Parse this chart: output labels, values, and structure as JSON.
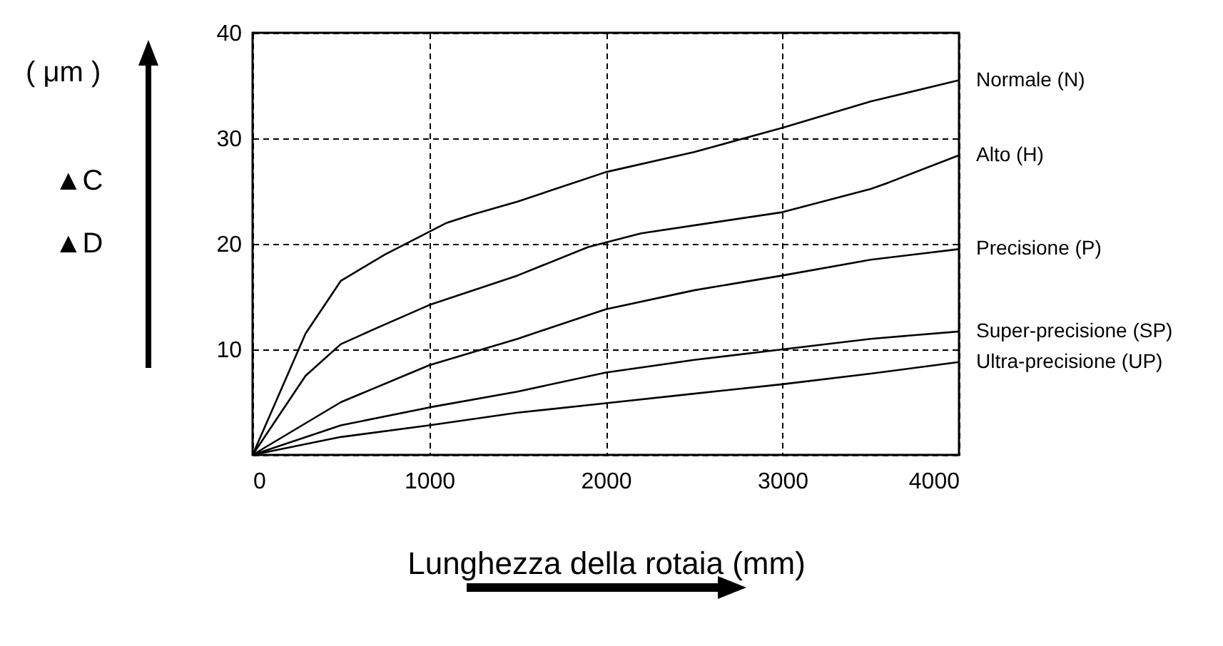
{
  "chart_data": {
    "type": "line",
    "xlabel": "Lunghezza della rotaia (mm)",
    "ylabel": "( μm )",
    "annotations": [
      "▲C",
      "▲D"
    ],
    "xlim": [
      0,
      4000
    ],
    "xticks": [
      0,
      1000,
      2000,
      3000,
      4000
    ],
    "ylim": [
      0,
      40
    ],
    "yticks": [
      {
        "value": 0,
        "label": null
      },
      10,
      20,
      30,
      40
    ],
    "grid": true,
    "line_style": "solid",
    "legend": false,
    "series": [
      {
        "name": "Normale (N)",
        "color": "#000000",
        "x": [
          0,
          300,
          500,
          750,
          1100,
          1250,
          1500,
          2000,
          2500,
          3000,
          3500,
          4000
        ],
        "values": [
          0,
          11.5,
          16.5,
          19,
          22,
          22.8,
          24,
          26.8,
          28.7,
          31,
          33.5,
          35.5
        ]
      },
      {
        "name": "Alto (H)",
        "color": "#000000",
        "x": [
          0,
          300,
          400,
          500,
          700,
          1000,
          1500,
          1900,
          2200,
          2600,
          3000,
          3500,
          3600,
          4000
        ],
        "values": [
          0,
          7.5,
          9,
          10.5,
          12,
          14.2,
          17,
          19.7,
          21,
          22,
          23,
          25.2,
          25.8,
          28.4
        ]
      },
      {
        "name": "Precisione (P)",
        "color": "#000000",
        "x": [
          0,
          500,
          1000,
          1500,
          2000,
          2500,
          3000,
          3500,
          4000
        ],
        "values": [
          0,
          5,
          8.5,
          11,
          13.8,
          15.6,
          17,
          18.5,
          19.5
        ]
      },
      {
        "name": "Super-precisione (SP)",
        "color": "#000000",
        "x": [
          0,
          500,
          1000,
          1500,
          2000,
          2500,
          3000,
          3500,
          4000
        ],
        "values": [
          0,
          2.8,
          4.5,
          6,
          7.8,
          9,
          10,
          11,
          11.7
        ]
      },
      {
        "name": "Ultra-precisione (UP)",
        "color": "#000000",
        "x": [
          0,
          500,
          1000,
          1500,
          2000,
          2500,
          3000,
          3500,
          4000
        ],
        "values": [
          0,
          1.7,
          2.8,
          4,
          4.9,
          5.8,
          6.7,
          7.7,
          8.8
        ]
      }
    ]
  }
}
